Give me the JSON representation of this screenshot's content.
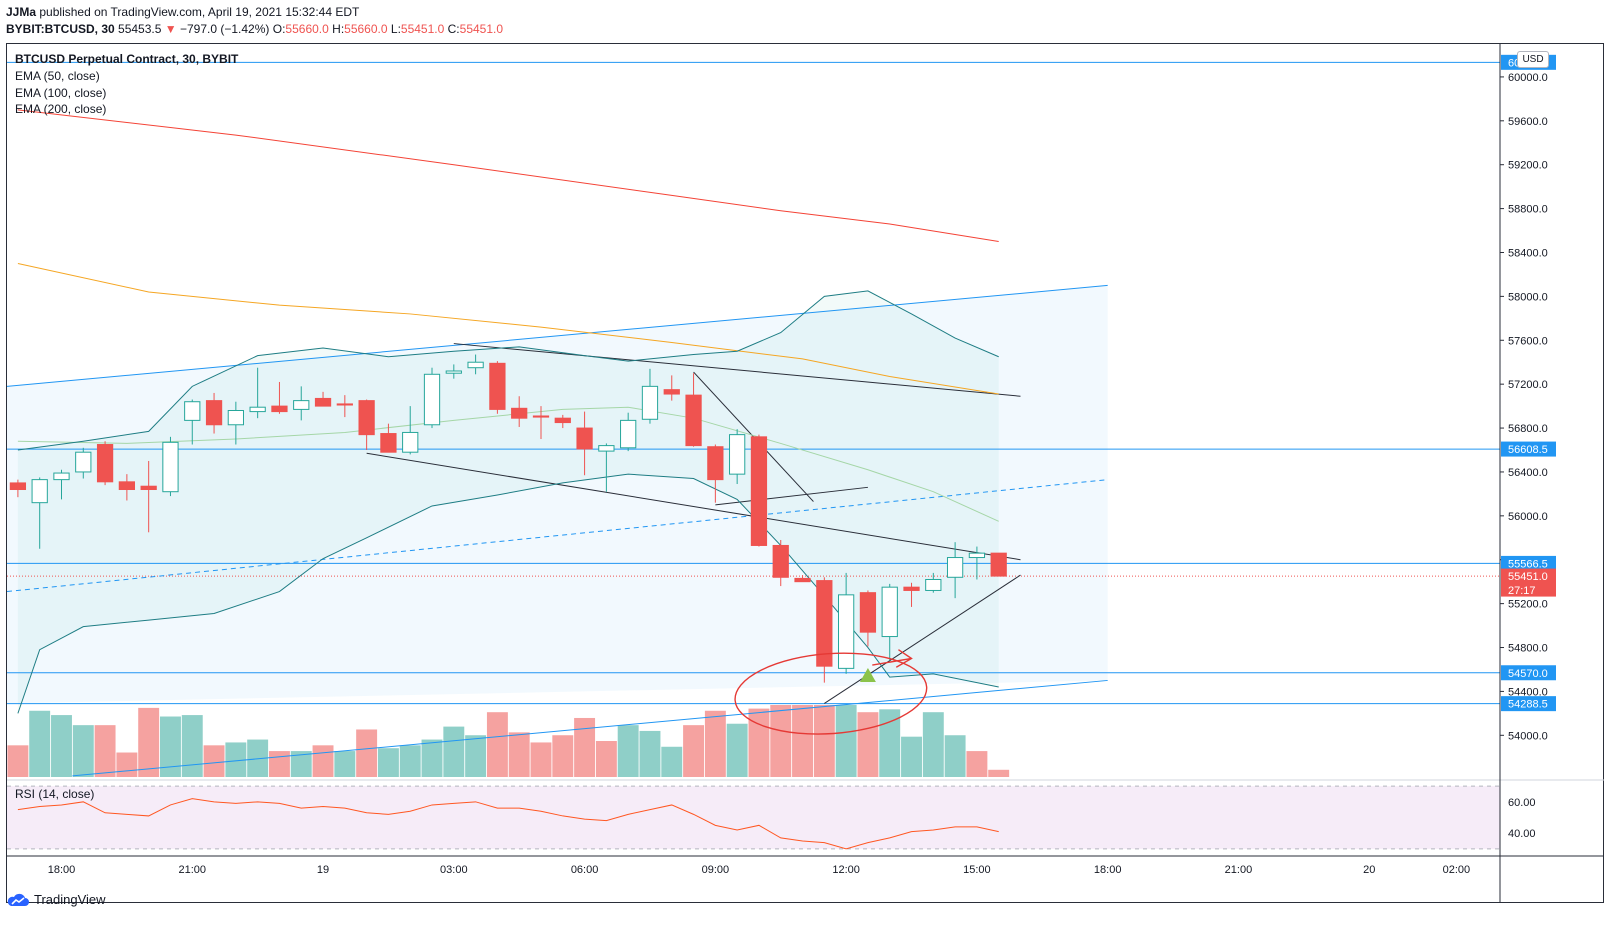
{
  "header": {
    "author": "JJMa",
    "published": "published on TradingView.com, April 19, 2021 15:32:44 EDT",
    "symbol": "BYBIT:BTCUSD, 30",
    "last": "55453.5",
    "arrow": "▼",
    "change": "−797.0 (−1.42%)",
    "o_label": "O:",
    "o_value": "55660.0",
    "h_label": "H:",
    "h_value": "55660.0",
    "l_label": "L:",
    "l_value": "55451.0",
    "c_label": "C:",
    "c_value": "55451.0"
  },
  "legend": {
    "title": "BTCUSD Perpetual Contract, 30, BYBIT",
    "ema50": "EMA (50, close)",
    "ema100": "EMA (100, close)",
    "ema200": "EMA (200, close)",
    "rsi": "RSI (14, close)"
  },
  "currency": "USD",
  "footer": {
    "brand": "TradingView"
  },
  "colors": {
    "up": "#26a69a",
    "down": "#ef5350",
    "vol_up": "#8fcfc8",
    "vol_down": "#f5a2a0",
    "ema50": "#a5d6a7",
    "ema100": "#f5a623",
    "ema200": "#f44336",
    "channel": "#2196f3",
    "bollinger": "#1e7d84",
    "rsi": "#ff5722",
    "annotation": "#e53935",
    "hline": "#2196f3"
  },
  "chart_data": {
    "type": "candlestick",
    "title": "BTCUSD Perpetual Contract, 30, BYBIT",
    "y_axis": {
      "ticks": [
        60000,
        59600,
        59200,
        58800,
        58400,
        58000,
        57600,
        57200,
        56800,
        56400,
        56000,
        55600,
        55200,
        54800,
        54400,
        54000
      ],
      "tick_labels": [
        "60000.0",
        "59600.0",
        "59200.0",
        "58800.0",
        "58400.0",
        "58000.0",
        "57600.0",
        "57200.0",
        "56800.0",
        "56400.0",
        "56000.0",
        "55600.0",
        "55200.0",
        "54800.0",
        "54400.0",
        "54000.0"
      ],
      "ylim": [
        53620,
        60300
      ]
    },
    "x_axis": {
      "labels": [
        "18:00",
        "21:00",
        "19",
        "03:00",
        "06:00",
        "09:00",
        "12:00",
        "15:00",
        "18:00",
        "21:00",
        "20",
        "02:00"
      ],
      "label_index": [
        2,
        8,
        14,
        20,
        26,
        32,
        38,
        44,
        50,
        56,
        62,
        66
      ],
      "range": [
        -0.5,
        68.0
      ]
    },
    "price_levels": [
      {
        "value": 60133.0,
        "label": "60133.0"
      },
      {
        "value": 56608.5,
        "label": "56608.5"
      },
      {
        "value": 55566.5,
        "label": "55566.5"
      },
      {
        "value": 54570.0,
        "label": "54570.0"
      },
      {
        "value": 54288.5,
        "label": "54288.5"
      }
    ],
    "last_price": {
      "value": 55451.0,
      "label": "55451.0",
      "countdown": "27:17"
    },
    "candles": [
      [
        56300,
        56330,
        56170,
        56240
      ],
      [
        56120,
        56350,
        55700,
        56330
      ],
      [
        56330,
        56420,
        56150,
        56390
      ],
      [
        56400,
        56620,
        56340,
        56580
      ],
      [
        56650,
        56680,
        56280,
        56310
      ],
      [
        56310,
        56380,
        56140,
        56240
      ],
      [
        56270,
        56500,
        55850,
        56240
      ],
      [
        56220,
        56720,
        56180,
        56670
      ],
      [
        56870,
        57060,
        56650,
        57040
      ],
      [
        57050,
        57120,
        56750,
        56830
      ],
      [
        56830,
        57040,
        56650,
        56960
      ],
      [
        56950,
        57350,
        56890,
        56990
      ],
      [
        57000,
        57220,
        56930,
        56950
      ],
      [
        56970,
        57180,
        56870,
        57050
      ],
      [
        57070,
        57130,
        57020,
        57000
      ],
      [
        57020,
        57100,
        56900,
        57010
      ],
      [
        57050,
        57060,
        56600,
        56740
      ],
      [
        56750,
        56840,
        56580,
        56580
      ],
      [
        56580,
        57000,
        56560,
        56760
      ],
      [
        56830,
        57350,
        56800,
        57290
      ],
      [
        57300,
        57380,
        57250,
        57320
      ],
      [
        57350,
        57470,
        57290,
        57400
      ],
      [
        57390,
        57410,
        56930,
        56970
      ],
      [
        56980,
        57090,
        56810,
        56890
      ],
      [
        56910,
        57000,
        56700,
        56900
      ],
      [
        56890,
        56920,
        56800,
        56850
      ],
      [
        56800,
        56950,
        56370,
        56610
      ],
      [
        56590,
        56660,
        56220,
        56640
      ],
      [
        56620,
        56940,
        56590,
        56870
      ],
      [
        56880,
        57340,
        56840,
        57180
      ],
      [
        57150,
        57280,
        57050,
        57110
      ],
      [
        57100,
        57300,
        56630,
        56640
      ],
      [
        56630,
        56650,
        56120,
        56330
      ],
      [
        56380,
        56790,
        56290,
        56740
      ],
      [
        56720,
        56740,
        55720,
        55730
      ],
      [
        55730,
        55780,
        55360,
        55440
      ],
      [
        55430,
        55460,
        55420,
        55400
      ],
      [
        55410,
        55440,
        54480,
        54630
      ],
      [
        54610,
        55480,
        54560,
        55280
      ],
      [
        55300,
        55320,
        54810,
        54940
      ],
      [
        54900,
        55380,
        54680,
        55350
      ],
      [
        55350,
        55390,
        55170,
        55320
      ],
      [
        55320,
        55480,
        55300,
        55420
      ],
      [
        55440,
        55760,
        55250,
        55620
      ],
      [
        55620,
        55720,
        55420,
        55660
      ],
      [
        55660,
        55660,
        55451,
        55451
      ]
    ],
    "ema200": [
      [
        0,
        59700
      ],
      [
        10,
        59470
      ],
      [
        20,
        59200
      ],
      [
        30,
        58920
      ],
      [
        35,
        58780
      ],
      [
        40,
        58660
      ],
      [
        45,
        58500
      ]
    ],
    "ema100": [
      [
        0,
        58300
      ],
      [
        6,
        58040
      ],
      [
        12,
        57920
      ],
      [
        18,
        57840
      ],
      [
        24,
        57720
      ],
      [
        30,
        57580
      ],
      [
        36,
        57430
      ],
      [
        40,
        57270
      ],
      [
        45,
        57110
      ]
    ],
    "ema50": [
      [
        0,
        56680
      ],
      [
        5,
        56660
      ],
      [
        10,
        56700
      ],
      [
        15,
        56760
      ],
      [
        20,
        56870
      ],
      [
        25,
        56970
      ],
      [
        28,
        56990
      ],
      [
        31,
        56890
      ],
      [
        35,
        56660
      ],
      [
        39,
        56420
      ],
      [
        42,
        56220
      ],
      [
        45,
        55950
      ]
    ],
    "bollinger_upper": [
      [
        0,
        56600
      ],
      [
        3,
        56680
      ],
      [
        6,
        56770
      ],
      [
        8,
        57180
      ],
      [
        11,
        57460
      ],
      [
        14,
        57530
      ],
      [
        17,
        57450
      ],
      [
        20,
        57500
      ],
      [
        23,
        57540
      ],
      [
        26,
        57460
      ],
      [
        28,
        57410
      ],
      [
        31,
        57470
      ],
      [
        33,
        57500
      ],
      [
        35,
        57670
      ],
      [
        37,
        58000
      ],
      [
        39,
        58050
      ],
      [
        41,
        57840
      ],
      [
        43,
        57620
      ],
      [
        45,
        57450
      ]
    ],
    "bollinger_lower": [
      [
        0,
        54200
      ],
      [
        1,
        54780
      ],
      [
        3,
        54990
      ],
      [
        6,
        55050
      ],
      [
        9,
        55110
      ],
      [
        12,
        55310
      ],
      [
        14,
        55610
      ],
      [
        16,
        55800
      ],
      [
        19,
        56090
      ],
      [
        22,
        56190
      ],
      [
        25,
        56300
      ],
      [
        28,
        56380
      ],
      [
        31,
        56340
      ],
      [
        33,
        56150
      ],
      [
        35,
        55730
      ],
      [
        37,
        55270
      ],
      [
        39,
        54800
      ],
      [
        40,
        54530
      ],
      [
        42,
        54560
      ],
      [
        45,
        54440
      ]
    ],
    "volume": [
      {
        "v": 0.44,
        "up": false
      },
      {
        "v": 0.92,
        "up": true
      },
      {
        "v": 0.86,
        "up": true
      },
      {
        "v": 0.72,
        "up": true
      },
      {
        "v": 0.72,
        "up": false
      },
      {
        "v": 0.34,
        "up": false
      },
      {
        "v": 0.96,
        "up": false
      },
      {
        "v": 0.84,
        "up": true
      },
      {
        "v": 0.86,
        "up": true
      },
      {
        "v": 0.44,
        "up": false
      },
      {
        "v": 0.48,
        "up": true
      },
      {
        "v": 0.52,
        "up": true
      },
      {
        "v": 0.36,
        "up": false
      },
      {
        "v": 0.36,
        "up": true
      },
      {
        "v": 0.44,
        "up": false
      },
      {
        "v": 0.36,
        "up": true
      },
      {
        "v": 0.66,
        "up": false
      },
      {
        "v": 0.4,
        "up": true
      },
      {
        "v": 0.44,
        "up": true
      },
      {
        "v": 0.52,
        "up": true
      },
      {
        "v": 0.7,
        "up": true
      },
      {
        "v": 0.58,
        "up": true
      },
      {
        "v": 0.9,
        "up": false
      },
      {
        "v": 0.62,
        "up": false
      },
      {
        "v": 0.48,
        "up": false
      },
      {
        "v": 0.58,
        "up": false
      },
      {
        "v": 0.82,
        "up": false
      },
      {
        "v": 0.5,
        "up": false
      },
      {
        "v": 0.72,
        "up": true
      },
      {
        "v": 0.64,
        "up": true
      },
      {
        "v": 0.42,
        "up": true
      },
      {
        "v": 0.72,
        "up": false
      },
      {
        "v": 0.92,
        "up": false
      },
      {
        "v": 0.74,
        "up": true
      },
      {
        "v": 0.95,
        "up": false
      },
      {
        "v": 1.0,
        "up": false
      },
      {
        "v": 1.0,
        "up": false
      },
      {
        "v": 1.0,
        "up": false
      },
      {
        "v": 1.0,
        "up": true
      },
      {
        "v": 0.9,
        "up": false
      },
      {
        "v": 0.94,
        "up": true
      },
      {
        "v": 0.56,
        "up": true
      },
      {
        "v": 0.9,
        "up": true
      },
      {
        "v": 0.58,
        "up": true
      },
      {
        "v": 0.36,
        "up": false
      },
      {
        "v": 0.1,
        "up": false
      }
    ],
    "rsi": {
      "ticks": [
        60,
        40
      ],
      "tick_labels": [
        "60.00",
        "40.00"
      ],
      "ylim": [
        28,
        72
      ],
      "band": [
        30,
        70
      ],
      "values": [
        55,
        57,
        58,
        60,
        53,
        52,
        51,
        58,
        62,
        60,
        59,
        60,
        59,
        56,
        57,
        56,
        53,
        52,
        54,
        58,
        59,
        60,
        56,
        56,
        54,
        51,
        49,
        48,
        52,
        55,
        58,
        52,
        45,
        42,
        45,
        37,
        35,
        34,
        30,
        34,
        37,
        41,
        42,
        44,
        44,
        41
      ]
    },
    "drawings": {
      "channel_top": [
        [
          -0.5,
          57180
        ],
        [
          50,
          58100
        ]
      ],
      "channel_bottom": [
        [
          2.5,
          53630
        ],
        [
          50,
          54500
        ]
      ],
      "channel_mid": [
        [
          -0.5,
          55310
        ],
        [
          50,
          56330
        ]
      ],
      "fib_fill_top": [
        [
          -0.5,
          57180
        ],
        [
          50,
          58100
        ]
      ],
      "fib_fill_bottom": [
        [
          -0.5,
          54290
        ],
        [
          50,
          54500
        ]
      ],
      "pitch_upper": [
        [
          20,
          57570
        ],
        [
          46,
          57090
        ]
      ],
      "pitch_lower": [
        [
          16,
          56570
        ],
        [
          46,
          55600
        ]
      ],
      "triangle_lower": [
        [
          37,
          54290
        ],
        [
          46,
          55460
        ]
      ],
      "triangle_left": [
        [
          31,
          57310
        ],
        [
          36.5,
          56130
        ]
      ],
      "wedge_bottom": [
        [
          32,
          56100
        ],
        [
          39,
          56260
        ]
      ],
      "signal_triangle": {
        "x": 39,
        "value": 54550
      }
    }
  }
}
